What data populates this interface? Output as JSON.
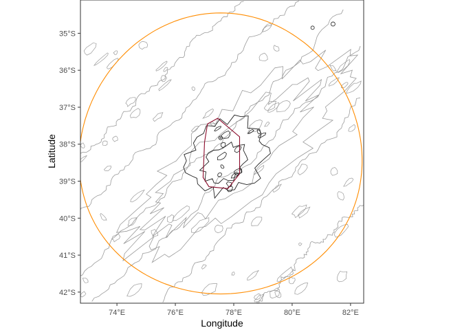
{
  "chart_data": {
    "type": "map",
    "xlabel": "Longitude",
    "ylabel": "Latitude",
    "xlim": [
      72.75,
      82.45
    ],
    "ylim": [
      -42.3,
      -34.1
    ],
    "x_ticks": [
      {
        "value": 74,
        "label": "74°E"
      },
      {
        "value": 76,
        "label": "76°E"
      },
      {
        "value": 78,
        "label": "78°E"
      },
      {
        "value": 80,
        "label": "80°E"
      },
      {
        "value": 82,
        "label": "82°E"
      }
    ],
    "y_ticks": [
      {
        "value": -35,
        "label": "35°S"
      },
      {
        "value": -36,
        "label": "36°S"
      },
      {
        "value": -37,
        "label": "37°S"
      },
      {
        "value": -38,
        "label": "38°S"
      },
      {
        "value": -39,
        "label": "39°S"
      },
      {
        "value": -40,
        "label": "40°S"
      },
      {
        "value": -41,
        "label": "41°S"
      },
      {
        "value": -42,
        "label": "42°S"
      }
    ],
    "grid": false,
    "circle": {
      "center_lon": 77.55,
      "center_lat": -38.25,
      "radius_deg_lat": 3.8,
      "color": "#ff8c00"
    },
    "polygon": {
      "color": "#8b0a2a",
      "points": [
        [
          77.1,
          -37.45
        ],
        [
          77.45,
          -37.3
        ],
        [
          78.2,
          -37.8
        ],
        [
          78.2,
          -38.8
        ],
        [
          77.8,
          -39.2
        ],
        [
          77.15,
          -39.15
        ],
        [
          76.95,
          -38.9
        ],
        [
          77.0,
          -37.95
        ]
      ]
    },
    "contour_colors": {
      "shallow": "#222222",
      "deep": "#9a9a9a"
    }
  }
}
